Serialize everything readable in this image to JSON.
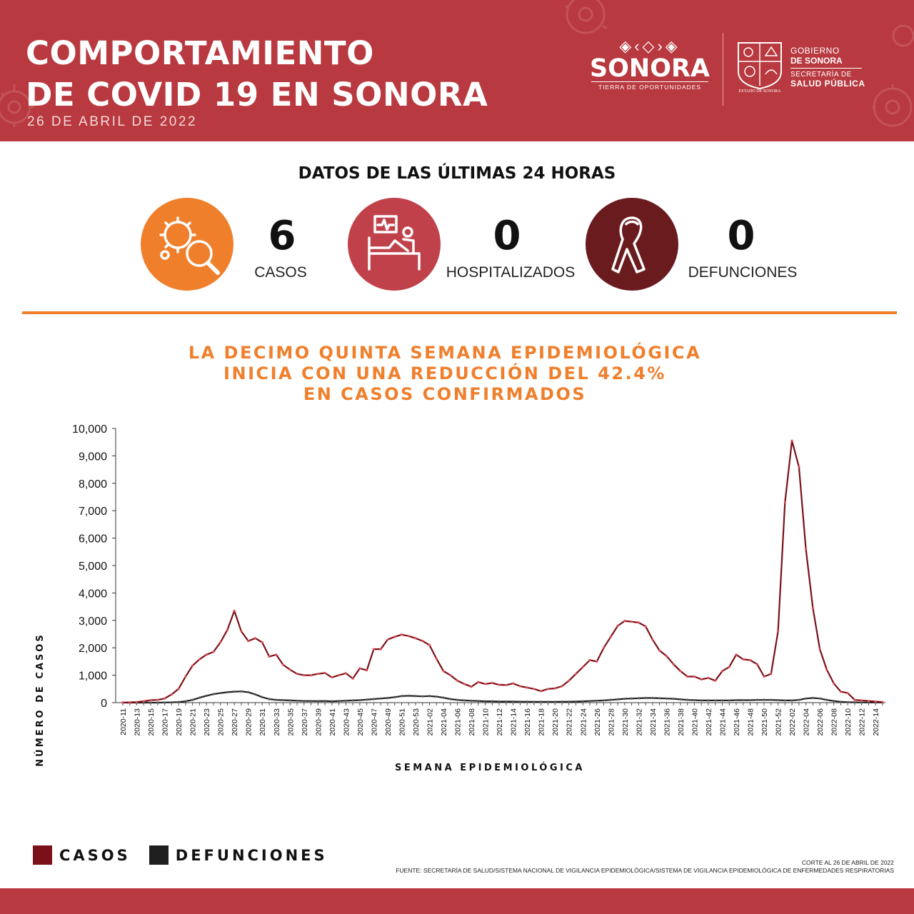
{
  "header": {
    "title_line1": "COMPORTAMIENTO",
    "title_line2": "DE COVID 19 EN SONORA",
    "date": "26 DE ABRIL DE 2022",
    "brand_marks": "◈‹◇›◈",
    "brand_name": "SONORA",
    "brand_tagline": "TIERRA DE OPORTUNIDADES",
    "crest_caption": "ESTADO DE SONORA",
    "gov_line1": "GOBIERNO",
    "gov_line2": "DE SONORA",
    "gov_line3": "SECRETARÍA DE",
    "gov_line4": "SALUD PÚBLICA",
    "colors": {
      "header_bg": "#b8393f",
      "accent": "#f07f2c"
    }
  },
  "stats": {
    "title": "DATOS DE LAS ÚLTIMAS 24 HORAS",
    "items": [
      {
        "icon": "virus-magnifier-icon",
        "value": "6",
        "label": "CASOS",
        "color": "#f07f2c"
      },
      {
        "icon": "hospital-bed-icon",
        "value": "0",
        "label": "HOSPITALIZADOS",
        "color": "#c0414a"
      },
      {
        "icon": "ribbon-icon",
        "value": "0",
        "label": "DEFUNCIONES",
        "color": "#6a1b1e"
      }
    ]
  },
  "headline": {
    "line1": "LA DECIMO QUINTA SEMANA EPIDEMIOLÓGICA",
    "line2": "INICIA CON UNA REDUCCIÓN DEL 42.4%",
    "line3": "EN CASOS CONFIRMADOS"
  },
  "chart_data": {
    "type": "line",
    "xlabel": "SEMANA EPIDEMIOLÓGICA",
    "ylabel": "NÚMERO DE CASOS",
    "ylim": [
      0,
      10000
    ],
    "yticks": [
      "10,000",
      "9,000",
      "8,000",
      "7,000",
      "6,000",
      "5,000",
      "4,000",
      "3,000",
      "2,000",
      "1,000",
      "0"
    ],
    "grid": false,
    "legend": "bottom-left",
    "x": [
      "2020-11",
      "2020-12",
      "2020-13",
      "2020-14",
      "2020-15",
      "2020-16",
      "2020-17",
      "2020-18",
      "2020-19",
      "2020-20",
      "2020-21",
      "2020-22",
      "2020-23",
      "2020-24",
      "2020-25",
      "2020-26",
      "2020-27",
      "2020-28",
      "2020-29",
      "2020-30",
      "2020-31",
      "2020-32",
      "2020-33",
      "2020-34",
      "2020-35",
      "2020-36",
      "2020-37",
      "2020-38",
      "2020-39",
      "2020-40",
      "2020-41",
      "2020-42",
      "2020-43",
      "2020-44",
      "2020-45",
      "2020-46",
      "2020-47",
      "2020-48",
      "2020-49",
      "2020-50",
      "2020-51",
      "2020-52",
      "2020-53",
      "2021-01",
      "2021-02",
      "2021-03",
      "2021-04",
      "2021-05",
      "2021-06",
      "2021-07",
      "2021-08",
      "2021-09",
      "2021-10",
      "2021-11",
      "2021-12",
      "2021-13",
      "2021-14",
      "2021-15",
      "2021-16",
      "2021-17",
      "2021-18",
      "2021-19",
      "2021-20",
      "2021-21",
      "2021-22",
      "2021-23",
      "2021-24",
      "2021-25",
      "2021-26",
      "2021-27",
      "2021-28",
      "2021-29",
      "2021-30",
      "2021-31",
      "2021-32",
      "2021-33",
      "2021-34",
      "2021-35",
      "2021-36",
      "2021-37",
      "2021-38",
      "2021-39",
      "2021-40",
      "2021-41",
      "2021-42",
      "2021-43",
      "2021-44",
      "2021-45",
      "2021-46",
      "2021-47",
      "2021-48",
      "2021-49",
      "2021-50",
      "2021-51",
      "2021-52",
      "2022-01",
      "2022-02",
      "2022-03",
      "2022-04",
      "2022-05",
      "2022-06",
      "2022-07",
      "2022-08",
      "2022-09",
      "2022-10",
      "2022-11",
      "2022-12",
      "2022-13",
      "2022-14",
      "2022-15"
    ],
    "x_tick_labels": [
      "2020-11",
      "2020-13",
      "2020-15",
      "2020-17",
      "2020-19",
      "2020-21",
      "2020-23",
      "2020-25",
      "2020-27",
      "2020-29",
      "2020-31",
      "2020-33",
      "2020-35",
      "2020-37",
      "2020-39",
      "2020-41",
      "2020-43",
      "2020-45",
      "2020-47",
      "2020-49",
      "2020-51",
      "2020-53",
      "2021-02",
      "2021-04",
      "2021-06",
      "2021-08",
      "2021-10",
      "2021-12",
      "2021-14",
      "2021-16",
      "2021-18",
      "2021-20",
      "2021-22",
      "2021-24",
      "2021-26",
      "2021-28",
      "2021-30",
      "2021-32",
      "2021-34",
      "2021-36",
      "2021-38",
      "2021-40",
      "2021-42",
      "2021-44",
      "2021-46",
      "2021-48",
      "2021-50",
      "2021-52",
      "2022-02",
      "2022-04",
      "2022-06",
      "2022-08",
      "2022-10",
      "2022-12",
      "2022-14"
    ],
    "series": [
      {
        "name": "CASOS",
        "color": "#7a1118",
        "values": [
          5,
          10,
          20,
          50,
          90,
          100,
          150,
          300,
          500,
          950,
          1350,
          1580,
          1750,
          1850,
          2200,
          2650,
          3350,
          2600,
          2250,
          2350,
          2200,
          1680,
          1750,
          1380,
          1200,
          1050,
          1000,
          1000,
          1050,
          1080,
          920,
          1000,
          1070,
          880,
          1250,
          1180,
          1950,
          1950,
          2300,
          2400,
          2480,
          2430,
          2350,
          2250,
          2100,
          1600,
          1150,
          1000,
          800,
          680,
          580,
          750,
          680,
          720,
          650,
          640,
          700,
          600,
          550,
          500,
          420,
          500,
          520,
          600,
          800,
          1050,
          1300,
          1550,
          1500,
          2000,
          2400,
          2800,
          2980,
          2950,
          2920,
          2780,
          2300,
          1900,
          1700,
          1400,
          1150,
          950,
          950,
          850,
          900,
          800,
          1150,
          1300,
          1750,
          1580,
          1550,
          1400,
          950,
          1050,
          2600,
          7300,
          9550,
          8600,
          5600,
          3450,
          1950,
          1200,
          700,
          400,
          350,
          100,
          80,
          60,
          40,
          20
        ]
      },
      {
        "name": "DEFUNCIONES",
        "color": "#1f1f1f",
        "values": [
          0,
          0,
          0,
          0,
          0,
          0,
          5,
          10,
          20,
          50,
          100,
          180,
          250,
          310,
          350,
          380,
          400,
          410,
          380,
          300,
          200,
          130,
          100,
          90,
          80,
          70,
          60,
          60,
          55,
          60,
          50,
          60,
          70,
          80,
          90,
          110,
          130,
          150,
          170,
          200,
          240,
          250,
          240,
          230,
          240,
          220,
          180,
          130,
          100,
          80,
          70,
          60,
          50,
          50,
          40,
          40,
          40,
          35,
          35,
          30,
          30,
          30,
          30,
          35,
          35,
          40,
          50,
          60,
          70,
          80,
          100,
          120,
          140,
          150,
          160,
          170,
          170,
          160,
          150,
          140,
          120,
          100,
          90,
          80,
          80,
          80,
          80,
          80,
          90,
          90,
          90,
          100,
          100,
          100,
          90,
          80,
          80,
          100,
          150,
          170,
          150,
          100,
          60,
          30,
          15,
          10,
          5,
          5,
          5,
          2
        ]
      }
    ]
  },
  "legend": {
    "casos_label": "CASOS",
    "casos_color": "#7a1118",
    "defunciones_label": "DEFUNCIONES",
    "defunciones_color": "#1f1f1f"
  },
  "footer": {
    "cutoff": "CORTE AL 26 DE ABRIL DE 2022",
    "source": "FUENTE: SECRETARÍA DE SALUD/SISTEMA NACIONAL DE VIGILANCIA EPIDEMIOLÓGICA/SISTEMA DE VIGILANCIA EPIDEMIOLÓGICA DE ENFERMEDADES RESPIRATORIAS"
  }
}
